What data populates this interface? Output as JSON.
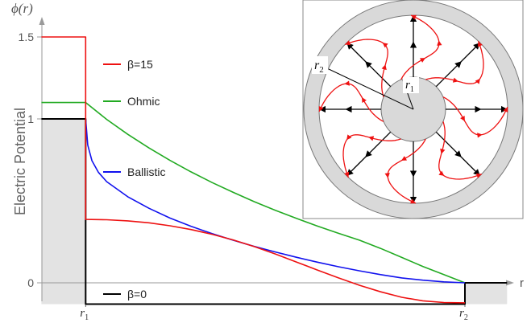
{
  "chart_data": {
    "type": "line",
    "title": "",
    "ylabel": "Electric Potential",
    "yaxis_title": "ϕ(r)",
    "xaxis_title": "r",
    "xlim": [
      0,
      1.17
    ],
    "ylim": [
      -0.13,
      1.6
    ],
    "yticks": [
      {
        "value": 0,
        "label": "0"
      },
      {
        "value": 1,
        "label": "1"
      },
      {
        "value": 1.5,
        "label": "1.5"
      }
    ],
    "xticks": [
      {
        "value": 0.1,
        "label": "r",
        "sub": "1"
      },
      {
        "value": 1.0,
        "label": "r",
        "sub": "2"
      }
    ],
    "shaded_regions": [
      {
        "x": [
          -0.005,
          0.1
        ],
        "y": [
          -0.13,
          1.0
        ],
        "color": "#e3e3e3"
      },
      {
        "x": [
          1.0,
          1.1
        ],
        "y": [
          -0.13,
          0.0
        ],
        "color": "#e3e3e3"
      }
    ],
    "series": [
      {
        "name": "β=15",
        "color": "#ee1111",
        "x": [
          -0.005,
          0.1,
          0.1,
          0.1,
          0.15,
          0.2,
          0.25,
          0.3,
          0.35,
          0.4,
          0.45,
          0.5,
          0.55,
          0.6,
          0.65,
          0.7,
          0.75,
          0.8,
          0.85,
          0.9,
          0.95,
          1.0
        ],
        "y": [
          1.5,
          1.5,
          0.387,
          0.387,
          0.385,
          0.378,
          0.366,
          0.348,
          0.325,
          0.296,
          0.262,
          0.221,
          0.176,
          0.127,
          0.078,
          0.03,
          -0.015,
          -0.055,
          -0.088,
          -0.11,
          -0.12,
          -0.122
        ]
      },
      {
        "name": "Ohmic",
        "color": "#22aa22",
        "x": [
          -0.005,
          0.1,
          0.15,
          0.2,
          0.25,
          0.3,
          0.35,
          0.4,
          0.45,
          0.5,
          0.55,
          0.6,
          0.65,
          0.7,
          0.75,
          0.8,
          0.85,
          0.9,
          0.95,
          1.0
        ],
        "y": [
          1.1,
          1.1,
          0.997,
          0.906,
          0.823,
          0.747,
          0.677,
          0.612,
          0.552,
          0.495,
          0.442,
          0.393,
          0.346,
          0.302,
          0.26,
          0.21,
          0.155,
          0.1,
          0.05,
          0.0
        ]
      },
      {
        "name": "Ballistic",
        "color": "#1111ee",
        "x": [
          0.1,
          0.105,
          0.115,
          0.13,
          0.15,
          0.2,
          0.25,
          0.3,
          0.35,
          0.4,
          0.45,
          0.5,
          0.55,
          0.6,
          0.65,
          0.7,
          0.75,
          0.8,
          0.85,
          0.9,
          0.95,
          1.0
        ],
        "y": [
          1.0,
          0.84,
          0.745,
          0.675,
          0.617,
          0.525,
          0.455,
          0.395,
          0.345,
          0.3,
          0.26,
          0.222,
          0.188,
          0.156,
          0.126,
          0.098,
          0.073,
          0.05,
          0.03,
          0.016,
          0.006,
          0.0
        ]
      },
      {
        "name": "β=0",
        "color": "#000000",
        "x": [
          -0.005,
          0.1,
          0.1,
          1.0,
          1.0,
          1.1
        ],
        "y": [
          1.0,
          1.0,
          -0.13,
          -0.13,
          0.0,
          0.0
        ]
      }
    ],
    "legend": [
      {
        "label": "β=15",
        "color": "#ee1111",
        "position": "upper-left"
      },
      {
        "label": "Ohmic",
        "color": "#22aa22",
        "position": "upper-left"
      },
      {
        "label": "Ballistic",
        "color": "#1111ee",
        "position": "middle-left"
      },
      {
        "label": "β=0",
        "color": "#000000",
        "position": "bottom-left"
      }
    ],
    "inset": {
      "description_labels": {
        "inner_radius": {
          "label": "r",
          "sub": "1"
        },
        "outer_radius": {
          "label": "r",
          "sub": "2"
        }
      },
      "ring_color": "#d9d9d9",
      "arrow_colors": {
        "ballistic": "#000000",
        "ohmic": "#ee1111"
      }
    }
  }
}
